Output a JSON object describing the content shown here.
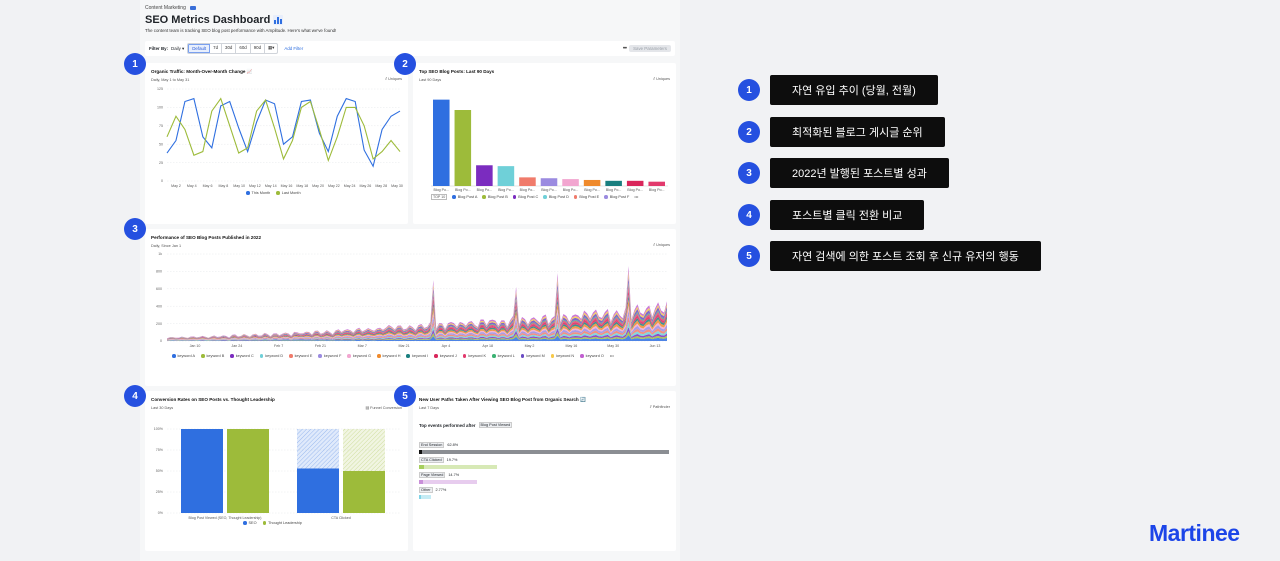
{
  "header": {
    "breadcrumb": "Content Marketing",
    "title": "SEO Metrics Dashboard",
    "subtitle": "The content team is tracking SEO blog post performance with Amplitude. Here's what we've found!"
  },
  "filter_bar": {
    "label": "Filter By:",
    "interval": "Daily",
    "ranges": [
      "Default",
      "7d",
      "30d",
      "60d",
      "90d"
    ],
    "add_filter": "Add Filter",
    "more": "•••",
    "save": "Save Parameters"
  },
  "panels": {
    "p1": {
      "title": "Organic Traffic: Month-Over-Month Change",
      "subtitle": "Daily, May 1 to May 31",
      "mode": "Uniques",
      "legend": [
        "This Month",
        "Last Month"
      ]
    },
    "p2": {
      "title": "Top SEO Blog Posts: Last 90 Days",
      "subtitle": "Last 90 Days",
      "mode": "Uniques",
      "top_tag": "TOP 10",
      "legend": [
        "Blog Post A",
        "Blog Post B",
        "Blog Post C",
        "Blog Post D",
        "Blog Post E",
        "Blog Post F"
      ],
      "more": "•••"
    },
    "p3": {
      "title": "Performance of SEO Blog Posts Published in 2022",
      "subtitle": "Daily, Since Jan 1",
      "mode": "Uniques",
      "legend": [
        "keyword A",
        "keyword B",
        "keyword C",
        "keyword D",
        "keyword E",
        "keyword F",
        "keyword G",
        "keyword H",
        "keyword I",
        "keyword J",
        "keyword K",
        "keyword L",
        "keyword M",
        "keyword N",
        "keyword O"
      ],
      "more": "•••"
    },
    "p4": {
      "title": "Conversion Rates on SEO Posts vs. Thought Leadership",
      "subtitle": "Last 30 Days",
      "mode": "Funnel Conversion",
      "legend": [
        "SEO",
        "Thought Leadership"
      ]
    },
    "p5": {
      "title": "New User Paths Taken After Viewing SEO Blog Post from Organic Search",
      "subtitle": "Last 7 Days",
      "mode": "Pathfinder",
      "events_title": "Top events performed after",
      "events_chip": "Blog Post Viewed",
      "events": [
        {
          "name": "End Session",
          "pct": "62.8%",
          "value": 62.8,
          "color": "#8b8e93"
        },
        {
          "name": "CTA Clicked",
          "pct": "19.7%",
          "value": 19.7,
          "color": "#a6cf5d"
        },
        {
          "name": "Page Viewed",
          "pct": "14.7%",
          "value": 14.7,
          "color": "#c98fd9"
        },
        {
          "name": "Other",
          "pct": "2.77%",
          "value": 2.77,
          "color": "#7fd3e6"
        }
      ]
    }
  },
  "badges": [
    "1",
    "2",
    "3",
    "4",
    "5"
  ],
  "annotations": [
    {
      "num": "1",
      "text": "자연 유입 추이 (당월, 전월)"
    },
    {
      "num": "2",
      "text": "최적화된 블로그 게시글 순위"
    },
    {
      "num": "3",
      "text": "2022년 발행된 포스트별 성과"
    },
    {
      "num": "4",
      "text": "포스트별 클릭 전환 비교"
    },
    {
      "num": "5",
      "text": "자연 검색에 의한 포스트 조회 후 신규 유저의 행동"
    }
  ],
  "logo": "Martinee",
  "colors": {
    "accent": "#2550e0",
    "annotation_bg": "#0d0d0d",
    "logo": "#1c45e8"
  },
  "chart_data": [
    {
      "type": "line",
      "title": "Organic Traffic: Month-Over-Month Change",
      "x_ticks": [
        "May 2",
        "May 4",
        "May 6",
        "May 8",
        "May 10",
        "May 12",
        "May 14",
        "May 16",
        "May 18",
        "May 20",
        "May 22",
        "May 24",
        "May 26",
        "May 28",
        "May 30"
      ],
      "y_ticks": [
        "125",
        "100",
        "75",
        "50",
        "25",
        "0"
      ],
      "ylim": [
        0,
        125
      ],
      "series": [
        {
          "name": "This Month",
          "color": "#2f6fe0",
          "values": [
            38,
            55,
            108,
            112,
            60,
            45,
            102,
            108,
            72,
            40,
            80,
            110,
            105,
            50,
            60,
            108,
            110,
            65,
            40,
            88,
            112,
            108,
            42,
            20,
            70,
            88,
            95
          ]
        },
        {
          "name": "Last Month",
          "color": "#9dbb3a",
          "values": [
            60,
            88,
            70,
            35,
            40,
            95,
            112,
            75,
            38,
            45,
            95,
            110,
            72,
            30,
            55,
            100,
            108,
            70,
            28,
            60,
            100,
            100,
            75,
            30,
            40,
            55,
            40
          ]
        }
      ]
    },
    {
      "type": "bar",
      "title": "Top SEO Blog Posts: Last 90 Days",
      "categories": [
        "Blog Po...",
        "Blog Po...",
        "Blog Po...",
        "Blog Po...",
        "Blog Po...",
        "Blog Po...",
        "Blog Po...",
        "Blog Po...",
        "Blog Po...",
        "Blog Po...",
        "Blog Po..."
      ],
      "values": [
        100,
        88,
        24,
        23,
        10,
        9,
        8,
        7,
        6,
        6,
        5
      ],
      "colors": [
        "#2f6fe0",
        "#9dbb3a",
        "#7b2cbf",
        "#6fd0d8",
        "#f07b6b",
        "#9b8be0",
        "#f2a6d0",
        "#ef8a2c",
        "#1a7f7f",
        "#d9265b",
        "#e23a6d"
      ],
      "ylim": [
        0,
        110
      ]
    },
    {
      "type": "area",
      "title": "Performance of SEO Blog Posts Published in 2022",
      "x_ticks": [
        "Jan 10",
        "Jan 24",
        "Feb 7",
        "Feb 21",
        "Mar 7",
        "Mar 21",
        "Apr 4",
        "Apr 18",
        "May 2",
        "May 16",
        "May 30",
        "Jun 13"
      ],
      "y_ticks": [
        "1k",
        "800",
        "600",
        "400",
        "200",
        "0"
      ],
      "ylim": [
        0,
        1000
      ],
      "series_count": 15
    },
    {
      "type": "bar",
      "title": "Conversion Rates on SEO Posts vs. Thought Leadership",
      "categories": [
        "Blog Post Viewed (SEO, Thought Leadership)",
        "CTA Clicked"
      ],
      "y_ticks": [
        "100%",
        "75%",
        "50%",
        "25%",
        "0%"
      ],
      "ylim": [
        0,
        100
      ],
      "series": [
        {
          "name": "SEO",
          "color": "#2f6fe0",
          "values": [
            100,
            53
          ]
        },
        {
          "name": "Thought Leadership",
          "color": "#9dbb3a",
          "values": [
            100,
            50
          ]
        }
      ]
    }
  ]
}
